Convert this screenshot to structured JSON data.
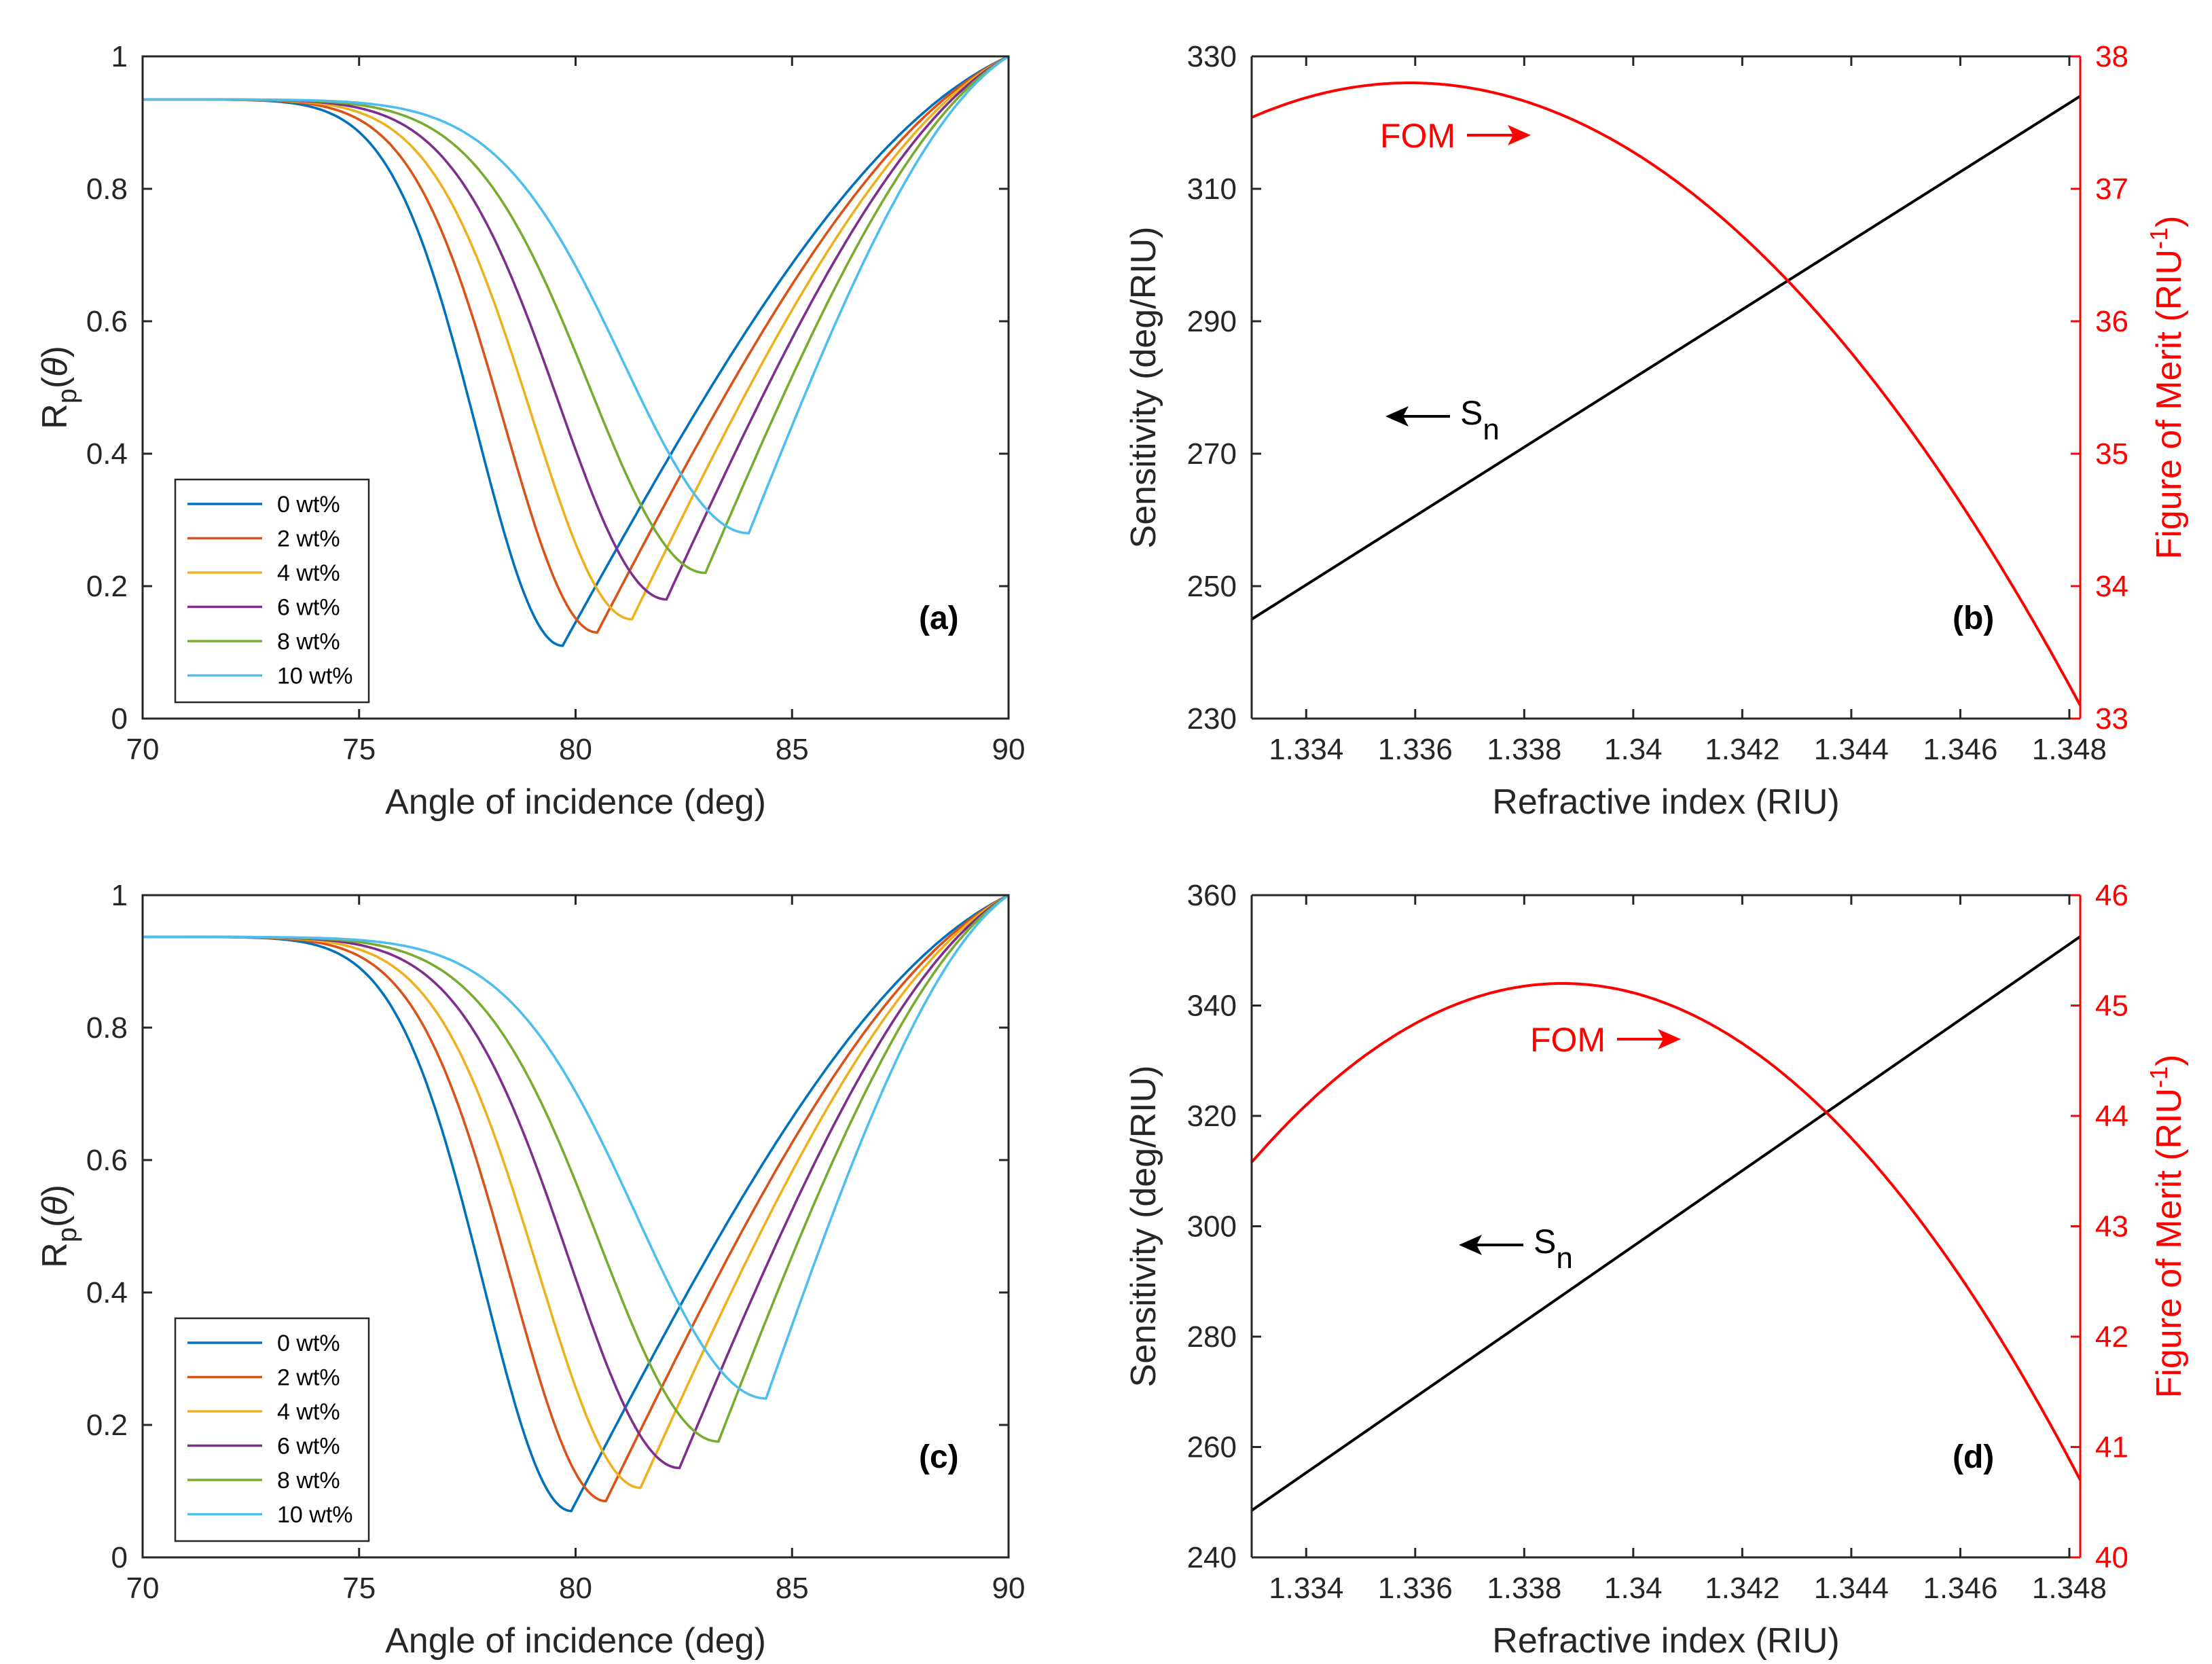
{
  "chart_data": [
    {
      "type": "line",
      "panel": "(a)",
      "xlabel": "Angle of incidence (deg)",
      "ylabel": "R_p(θ)",
      "xlim": [
        70,
        90
      ],
      "ylim": [
        0,
        1
      ],
      "xticks": [
        70,
        75,
        80,
        85,
        90
      ],
      "yticks": [
        0,
        0.2,
        0.4,
        0.6,
        0.8,
        1
      ],
      "legend_position": "bottom-left",
      "series": [
        {
          "name": "0 wt%",
          "color": "#0072BD",
          "start": 0.935,
          "min_x": 79.7,
          "min_y": 0.11
        },
        {
          "name": "2 wt%",
          "color": "#D95319",
          "start": 0.935,
          "min_x": 80.5,
          "min_y": 0.13
        },
        {
          "name": "4 wt%",
          "color": "#EDB120",
          "start": 0.935,
          "min_x": 81.3,
          "min_y": 0.15
        },
        {
          "name": "6 wt%",
          "color": "#7E2F8E",
          "start": 0.935,
          "min_x": 82.1,
          "min_y": 0.18
        },
        {
          "name": "8 wt%",
          "color": "#77AC30",
          "start": 0.935,
          "min_x": 83.0,
          "min_y": 0.22
        },
        {
          "name": "10 wt%",
          "color": "#4DBEEE",
          "start": 0.935,
          "min_x": 84.0,
          "min_y": 0.28
        }
      ]
    },
    {
      "type": "line",
      "panel": "(b)",
      "xlabel": "Refractive index (RIU)",
      "ylabel": "Sensitivity (deg/RIU)",
      "y2label": "Figure of Merit (RIU-1)",
      "xlim": [
        1.333,
        1.3482
      ],
      "ylim": [
        230,
        330
      ],
      "y2lim": [
        33,
        38
      ],
      "xticks": [
        1.334,
        1.336,
        1.338,
        1.34,
        1.342,
        1.344,
        1.346,
        1.348
      ],
      "xticklabels": [
        "1.334",
        "1.336",
        "1.338",
        "1.34",
        "1.342",
        "1.344",
        "1.346",
        "1.348"
      ],
      "yticks": [
        230,
        250,
        270,
        290,
        310,
        330
      ],
      "y2ticks": [
        33,
        34,
        35,
        36,
        37,
        38
      ],
      "sensitivity": {
        "name": "S_n",
        "color": "#000000",
        "x": [
          1.333,
          1.3482
        ],
        "y": [
          245,
          324
        ]
      },
      "fom": {
        "name": "FOM",
        "color": "#FF0000",
        "peak_x": 1.3359,
        "peak_y": 37.8,
        "x_end": 1.3482,
        "y_end": 33.1
      },
      "annotations": {
        "fom_label": "FOM",
        "sn_main": "S",
        "sn_sub": "n"
      }
    },
    {
      "type": "line",
      "panel": "(c)",
      "xlabel": "Angle of incidence (deg)",
      "ylabel": "R_p(θ)",
      "xlim": [
        70,
        90
      ],
      "ylim": [
        0,
        1
      ],
      "xticks": [
        70,
        75,
        80,
        85,
        90
      ],
      "yticks": [
        0,
        0.2,
        0.4,
        0.6,
        0.8,
        1
      ],
      "legend_position": "bottom-left",
      "series": [
        {
          "name": "0 wt%",
          "color": "#0072BD",
          "start": 0.937,
          "min_x": 79.9,
          "min_y": 0.07
        },
        {
          "name": "2 wt%",
          "color": "#D95319",
          "start": 0.937,
          "min_x": 80.7,
          "min_y": 0.085
        },
        {
          "name": "4 wt%",
          "color": "#EDB120",
          "start": 0.937,
          "min_x": 81.5,
          "min_y": 0.105
        },
        {
          "name": "6 wt%",
          "color": "#7E2F8E",
          "start": 0.937,
          "min_x": 82.4,
          "min_y": 0.135
        },
        {
          "name": "8 wt%",
          "color": "#77AC30",
          "start": 0.937,
          "min_x": 83.3,
          "min_y": 0.175
        },
        {
          "name": "10 wt%",
          "color": "#4DBEEE",
          "start": 0.937,
          "min_x": 84.4,
          "min_y": 0.24
        }
      ]
    },
    {
      "type": "line",
      "panel": "(d)",
      "xlabel": "Refractive index (RIU)",
      "ylabel": "Sensitivity (deg/RIU)",
      "y2label": "Figure of Merit (RIU-1)",
      "xlim": [
        1.333,
        1.3482
      ],
      "ylim": [
        240,
        360
      ],
      "y2lim": [
        40,
        46
      ],
      "xticks": [
        1.334,
        1.336,
        1.338,
        1.34,
        1.342,
        1.344,
        1.346,
        1.348
      ],
      "xticklabels": [
        "1.334",
        "1.336",
        "1.338",
        "1.34",
        "1.342",
        "1.344",
        "1.346",
        "1.348"
      ],
      "yticks": [
        240,
        260,
        280,
        300,
        320,
        340,
        360
      ],
      "y2ticks": [
        40,
        41,
        42,
        43,
        44,
        45,
        46
      ],
      "sensitivity": {
        "name": "S_n",
        "color": "#000000",
        "x": [
          1.333,
          1.3482
        ],
        "y": [
          248.5,
          352.5
        ]
      },
      "fom": {
        "name": "FOM",
        "color": "#FF0000",
        "peak_x": 1.3387,
        "peak_y": 45.2,
        "x_end": 1.3482,
        "y_end": 40.7
      },
      "annotations": {
        "fom_label": "FOM",
        "sn_main": "S",
        "sn_sub": "n"
      }
    }
  ]
}
